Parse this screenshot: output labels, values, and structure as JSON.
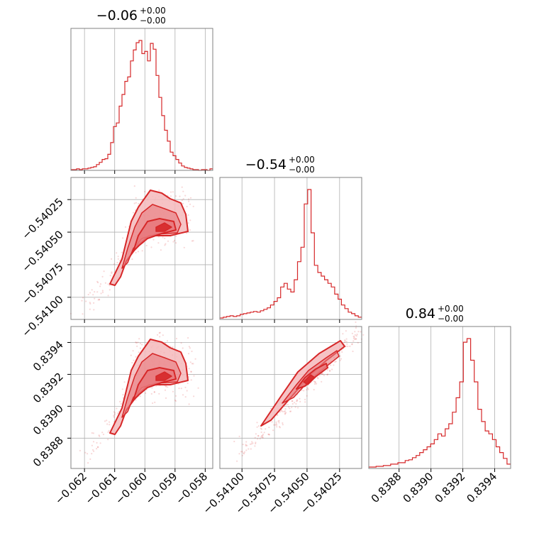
{
  "style": {
    "accent": "#d62728",
    "fill_light": "#f4b9bb",
    "fill_mid": "#e8787b",
    "grid": "#b0b0b0",
    "frame": "#808080"
  },
  "titles": [
    {
      "main": "−0.06",
      "sup": "+0.00",
      "sub": "−0.00"
    },
    {
      "main": "−0.54",
      "sup": "+0.00",
      "sub": "−0.00"
    },
    {
      "main": "0.84",
      "sup": "+0.00",
      "sub": "−0.00"
    }
  ],
  "axes_labels": {
    "x0_ticks": [
      "−0.062",
      "−0.061",
      "−0.060",
      "−0.059",
      "−0.058"
    ],
    "x1_ticks": [
      "−0.54100",
      "−0.54075",
      "−0.54050",
      "−0.54025"
    ],
    "x2_ticks": [
      "0.8388",
      "0.8390",
      "0.8392",
      "0.8394"
    ],
    "y1_ticks": [
      "−0.54025",
      "−0.54050",
      "−0.54075",
      "−0.54100"
    ],
    "y2_ticks": [
      "0.8394",
      "0.8392",
      "0.8390",
      "0.8388"
    ]
  },
  "chart_data": {
    "type": "corner",
    "grid": true,
    "parameters": [
      {
        "range": [
          -0.06245,
          -0.05775
        ],
        "ticks": [
          -0.062,
          -0.061,
          -0.06,
          -0.059,
          -0.058
        ]
      },
      {
        "range": [
          -0.54117,
          -0.54008
        ],
        "ticks": [
          -0.541,
          -0.54075,
          -0.5405,
          -0.54025
        ]
      },
      {
        "range": [
          0.83861,
          0.8395
        ],
        "ticks": [
          0.8388,
          0.839,
          0.8392,
          0.8394
        ]
      }
    ],
    "histograms": [
      {
        "param": 0,
        "range": [
          -0.06245,
          -0.05775
        ],
        "counts": [
          1,
          1,
          2,
          1,
          2,
          2,
          3,
          4,
          5,
          8,
          11,
          15,
          16,
          22,
          38,
          60,
          65,
          88,
          104,
          122,
          128,
          150,
          165,
          175,
          178,
          160,
          163,
          150,
          174,
          166,
          130,
          100,
          75,
          55,
          40,
          25,
          20,
          15,
          10,
          6,
          4,
          3,
          2,
          1,
          1,
          0,
          1,
          1,
          0,
          2
        ]
      },
      {
        "param": 1,
        "range": [
          -0.54117,
          -0.54008
        ],
        "counts": [
          2,
          3,
          4,
          5,
          4,
          5,
          7,
          8,
          9,
          10,
          11,
          10,
          12,
          14,
          16,
          20,
          25,
          30,
          45,
          50,
          42,
          38,
          55,
          80,
          100,
          160,
          180,
          120,
          75,
          65,
          60,
          55,
          50,
          45,
          35,
          28,
          20,
          15,
          10,
          8,
          5,
          3
        ]
      },
      {
        "param": 2,
        "range": [
          0.83861,
          0.8395
        ],
        "counts": [
          2,
          2,
          3,
          3,
          4,
          4,
          6,
          6,
          8,
          8,
          11,
          12,
          15,
          18,
          22,
          26,
          30,
          34,
          40,
          48,
          45,
          55,
          62,
          78,
          98,
          120,
          175,
          180,
          150,
          120,
          82,
          65,
          52,
          48,
          40,
          30,
          22,
          14,
          6
        ]
      }
    ],
    "scatter_2d": [
      {
        "x_param": 0,
        "y_param": 1,
        "levels": [
          "0.5σ",
          "1σ",
          "1.5σ",
          "2σ"
        ]
      },
      {
        "x_param": 0,
        "y_param": 2,
        "levels": [
          "0.5σ",
          "1σ",
          "1.5σ",
          "2σ"
        ]
      },
      {
        "x_param": 1,
        "y_param": 2,
        "levels": [
          "0.5σ",
          "1σ",
          "1.5σ",
          "2σ"
        ]
      }
    ]
  }
}
